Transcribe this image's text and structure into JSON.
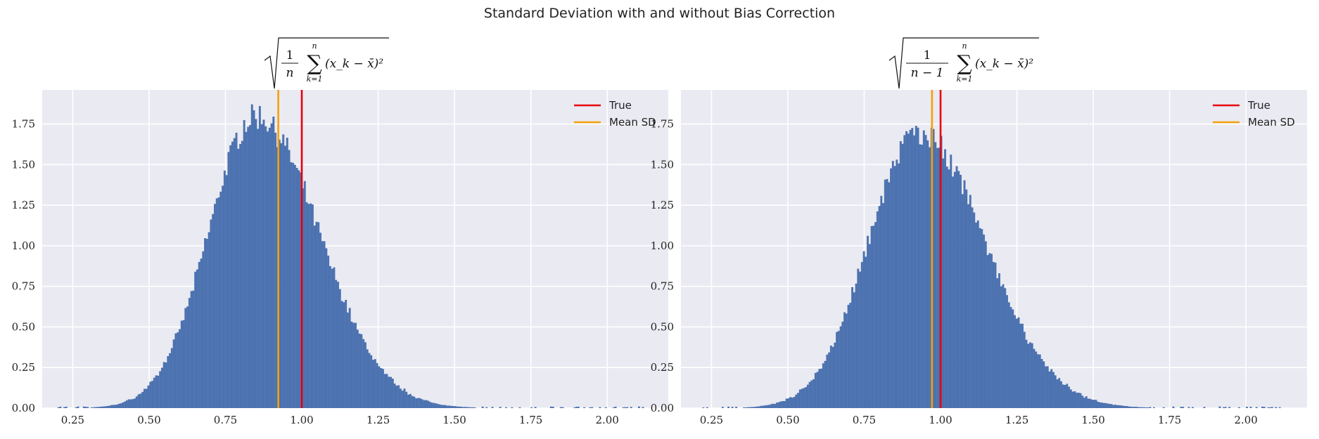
{
  "suptitle": "Standard Deviation with and without Bias Correction",
  "colors": {
    "background": "#eaeaf2",
    "grid": "#ffffff",
    "bars": "#4c72b0",
    "true_line": "#e8000b",
    "mean_line": "#f5a00a"
  },
  "chart_data": [
    {
      "type": "bar",
      "title_formula": {
        "prefix": "1",
        "denominator": "n",
        "sum_upper": "n",
        "sum_lower": "k=1",
        "body": "(x_k − x̄)²"
      },
      "xlim": [
        0.15,
        2.2
      ],
      "ylim": [
        0,
        1.96
      ],
      "xticks": [
        "0.25",
        "0.50",
        "0.75",
        "1.00",
        "1.25",
        "1.50",
        "1.75",
        "2.00"
      ],
      "yticks": [
        "0.00",
        "0.25",
        "0.50",
        "0.75",
        "1.00",
        "1.25",
        "1.50",
        "1.75"
      ],
      "histogram": {
        "mode": 0.85,
        "peak": 1.8,
        "sd_left": 0.155,
        "sd_right": 0.205,
        "range": [
          0.2,
          2.12
        ],
        "bins": 300,
        "seed": 7
      },
      "vlines": {
        "true": 1.0,
        "mean_sd": 0.923
      },
      "legend": [
        "True",
        "Mean SD"
      ]
    },
    {
      "type": "bar",
      "title_formula": {
        "prefix": "1",
        "denominator": "n − 1",
        "sum_upper": "n",
        "sum_lower": "k=1",
        "body": "(x_k − x̄)²"
      },
      "xlim": [
        0.15,
        2.2
      ],
      "ylim": [
        0,
        1.96
      ],
      "xticks": [
        "0.25",
        "0.50",
        "0.75",
        "1.00",
        "1.25",
        "1.50",
        "1.75",
        "2.00"
      ],
      "yticks": [
        "0.00",
        "0.25",
        "0.50",
        "0.75",
        "1.00",
        "1.25",
        "1.50",
        "1.75"
      ],
      "histogram": {
        "mode": 0.93,
        "peak": 1.7,
        "sd_left": 0.165,
        "sd_right": 0.215,
        "range": [
          0.22,
          2.12
        ],
        "bins": 300,
        "seed": 11
      },
      "vlines": {
        "true": 1.0,
        "mean_sd": 0.972
      },
      "legend": [
        "True",
        "Mean SD"
      ]
    }
  ]
}
